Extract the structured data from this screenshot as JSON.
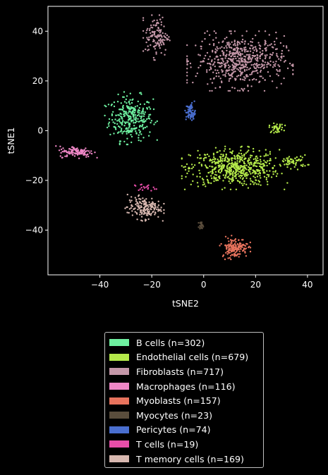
{
  "chart_data": {
    "type": "scatter",
    "xlabel": "tSNE2",
    "ylabel": "tSNE1",
    "xlim": [
      -60,
      46
    ],
    "ylim": [
      -58,
      50
    ],
    "x_ticks": [
      -40,
      -20,
      0,
      20,
      40
    ],
    "y_ticks": [
      -40,
      -20,
      0,
      20,
      40
    ],
    "grid": false,
    "legend_position": "below",
    "series": [
      {
        "name": "B cells (n=302)",
        "color": "#6ef0a0",
        "count": 302,
        "clusters": [
          {
            "cx": -28,
            "cy": 5,
            "sx": 4.2,
            "sy": 4.4
          }
        ]
      },
      {
        "name": "Endothelial cells (n=679)",
        "color": "#b4e94a",
        "count": 679,
        "clusters": [
          {
            "cx": 12,
            "cy": -15,
            "sx": 8.5,
            "sy": 3.6,
            "w": 0.86
          },
          {
            "cx": 35,
            "cy": -12.5,
            "sx": 2.4,
            "sy": 1.3,
            "w": 0.08
          },
          {
            "cx": 28,
            "cy": 1,
            "sx": 1.4,
            "sy": 0.9,
            "w": 0.06
          }
        ]
      },
      {
        "name": "Fibroblasts (n=717)",
        "color": "#c497a8",
        "count": 717,
        "clusters": [
          {
            "cx": 14,
            "cy": 28,
            "sx": 8.5,
            "sy": 5,
            "w": 0.82
          },
          {
            "cx": -18,
            "cy": 38,
            "sx": 2.2,
            "sy": 4,
            "w": 0.18
          }
        ]
      },
      {
        "name": "Macrophages (n=116)",
        "color": "#ee87c6",
        "count": 116,
        "clusters": [
          {
            "cx": -49,
            "cy": -8.5,
            "sx": 3.3,
            "sy": 1.1
          }
        ]
      },
      {
        "name": "Myoblasts (n=157)",
        "color": "#e8735d",
        "count": 157,
        "clusters": [
          {
            "cx": 12,
            "cy": -47,
            "sx": 2.5,
            "sy": 2
          }
        ]
      },
      {
        "name": "Myocytes (n=23)",
        "color": "#5a4d3c",
        "count": 23,
        "clusters": [
          {
            "cx": -1,
            "cy": -38,
            "sx": 0.4,
            "sy": 0.6
          }
        ]
      },
      {
        "name": "Pericytes (n=74)",
        "color": "#4a6fd0",
        "count": 74,
        "clusters": [
          {
            "cx": -5,
            "cy": 7.5,
            "sx": 0.9,
            "sy": 1.8
          }
        ]
      },
      {
        "name": "T cells (n=19)",
        "color": "#e64da9",
        "count": 19,
        "clusters": [
          {
            "cx": -23,
            "cy": -23,
            "sx": 2,
            "sy": 0.8
          }
        ]
      },
      {
        "name": "T memory cells (n=169)",
        "color": "#d8b8b0",
        "count": 169,
        "clusters": [
          {
            "cx": -23,
            "cy": -31,
            "sx": 3.2,
            "sy": 2.2
          }
        ]
      }
    ]
  }
}
